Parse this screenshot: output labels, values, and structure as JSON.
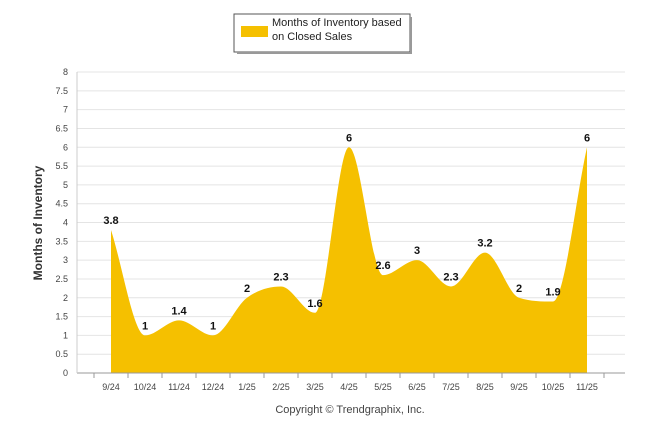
{
  "chart_data": {
    "type": "area",
    "categories": [
      "9/24",
      "10/24",
      "11/24",
      "12/24",
      "1/25",
      "2/25",
      "3/25",
      "4/25",
      "5/25",
      "6/25",
      "7/25",
      "8/25",
      "9/25",
      "10/25",
      "11/25"
    ],
    "series": [
      {
        "name": "Months of Inventory based on Closed Sales",
        "values": [
          3.8,
          1,
          1.4,
          1,
          2,
          2.3,
          1.6,
          6,
          2.6,
          3,
          2.3,
          3.2,
          2,
          1.9,
          6
        ],
        "labels": [
          "3.8",
          "1",
          "1.4",
          "1",
          "2",
          "2.3",
          "1.6",
          "6",
          "2.6",
          "3",
          "2.3",
          "3.2",
          "2",
          "1.9",
          "6"
        ]
      }
    ],
    "legend_lines": [
      "Months of Inventory based",
      "on Closed Sales"
    ],
    "ylabel": "Months of Inventory",
    "xlabel": "",
    "ylim": [
      0,
      8
    ],
    "yticks": [
      "0",
      "0.5",
      "1",
      "1.5",
      "2",
      "2.5",
      "3",
      "3.5",
      "4",
      "4.5",
      "5",
      "5.5",
      "6",
      "6.5",
      "7",
      "7.5",
      "8"
    ],
    "grid": true,
    "legend_position": "top-center",
    "fill_color": "#f5c000",
    "credit": "Copyright © Trendgraphix, Inc."
  }
}
